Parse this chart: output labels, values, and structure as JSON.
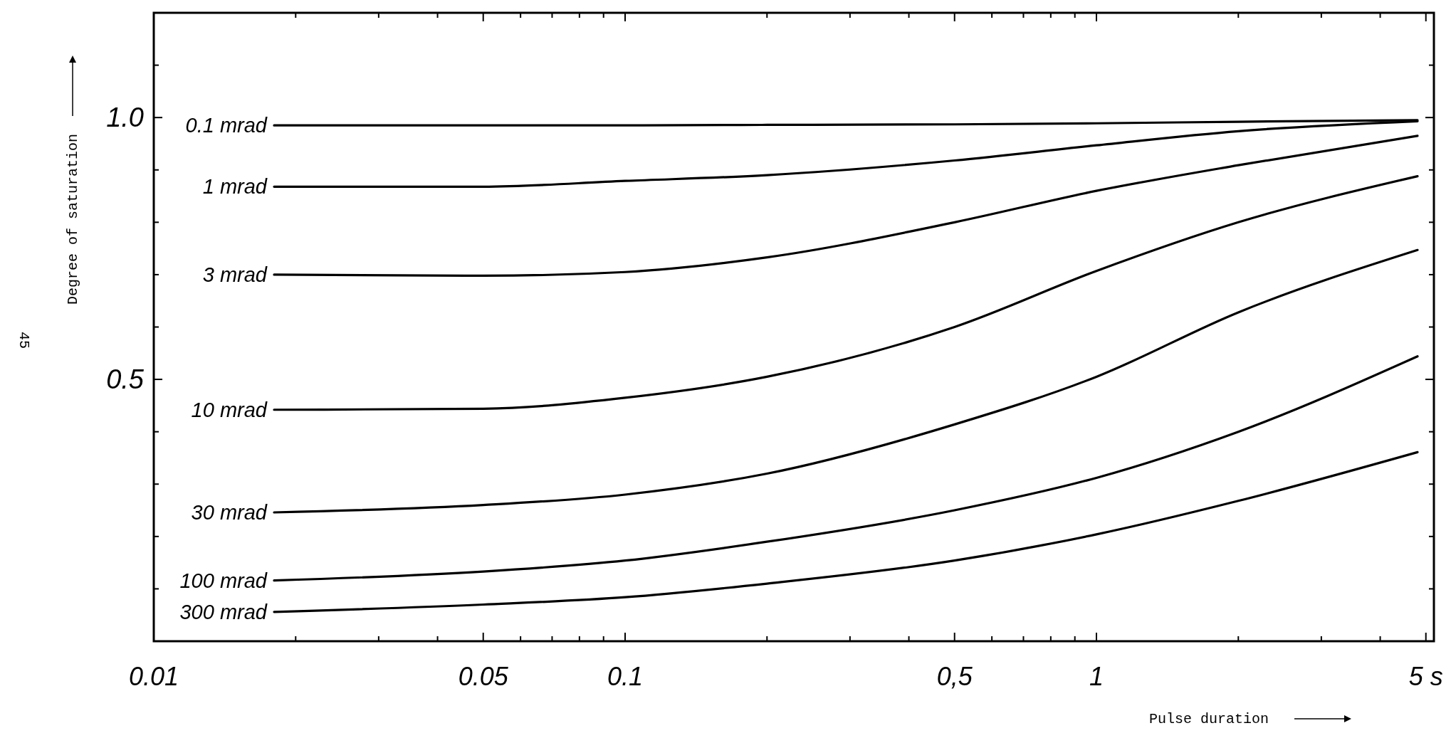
{
  "chart_data": {
    "type": "line",
    "xlabel": "Pulse duration",
    "ylabel": "Degree of saturation",
    "log": "x",
    "xlim": [
      0.01,
      5.2
    ],
    "ylim": [
      0,
      1.2
    ],
    "xticks": [
      0.01,
      {
        "value": 0.02,
        "label": null
      },
      {
        "value": 0.03,
        "label": null
      },
      {
        "value": 0.04,
        "label": null
      },
      0.05,
      {
        "value": 0.06,
        "label": null
      },
      {
        "value": 0.07,
        "label": null
      },
      {
        "value": 0.08,
        "label": null
      },
      {
        "value": 0.09,
        "label": null
      },
      0.1,
      {
        "value": 0.2,
        "label": null
      },
      {
        "value": 0.3,
        "label": null
      },
      {
        "value": 0.4,
        "label": null
      },
      {
        "value": 0.5,
        "label": "0,5"
      },
      {
        "value": 0.6,
        "label": null
      },
      {
        "value": 0.7,
        "label": null
      },
      {
        "value": 0.8,
        "label": null
      },
      {
        "value": 0.9,
        "label": null
      },
      1,
      {
        "value": 2,
        "label": null
      },
      {
        "value": 3,
        "label": null
      },
      {
        "value": 4,
        "label": null
      },
      {
        "value": 5,
        "label": "5 s"
      }
    ],
    "yticks": [
      {
        "value": 0.1,
        "label": null
      },
      {
        "value": 0.2,
        "label": null
      },
      {
        "value": 0.3,
        "label": null
      },
      {
        "value": 0.4,
        "label": null
      },
      {
        "value": 0.5,
        "label": "0.5"
      },
      {
        "value": 0.6,
        "label": null
      },
      {
        "value": 0.7,
        "label": null
      },
      {
        "value": 0.8,
        "label": null
      },
      {
        "value": 0.9,
        "label": null
      },
      {
        "value": 1,
        "label": "1.0"
      },
      {
        "value": 1.1,
        "label": null
      }
    ],
    "x": [
      0.018,
      0.05,
      0.1,
      0.2,
      0.5,
      1,
      2,
      4.8
    ],
    "series": [
      {
        "name": "0.1 mrad",
        "color": "#000000",
        "values": [
          0.985,
          0.985,
          0.985,
          0.986,
          0.987,
          0.989,
          0.992,
          0.995
        ]
      },
      {
        "name": "1 mrad",
        "color": "#000000",
        "values": [
          0.868,
          0.868,
          0.879,
          0.89,
          0.918,
          0.947,
          0.974,
          0.993
        ]
      },
      {
        "name": "3 mrad",
        "color": "#000000",
        "values": [
          0.7,
          0.698,
          0.705,
          0.733,
          0.8,
          0.86,
          0.909,
          0.965
        ]
      },
      {
        "name": "10 mrad",
        "color": "#000000",
        "values": [
          0.442,
          0.444,
          0.465,
          0.505,
          0.6,
          0.707,
          0.8,
          0.888
        ]
      },
      {
        "name": "30 mrad",
        "color": "#000000",
        "values": [
          0.246,
          0.26,
          0.28,
          0.32,
          0.414,
          0.505,
          0.628,
          0.747
        ]
      },
      {
        "name": "100 mrad",
        "color": "#000000",
        "values": [
          0.116,
          0.133,
          0.154,
          0.19,
          0.25,
          0.312,
          0.4,
          0.544
        ]
      },
      {
        "name": "300 mrad",
        "color": "#000000",
        "values": [
          0.056,
          0.07,
          0.084,
          0.11,
          0.154,
          0.204,
          0.268,
          0.361
        ]
      }
    ],
    "annotations": [
      "45"
    ]
  }
}
